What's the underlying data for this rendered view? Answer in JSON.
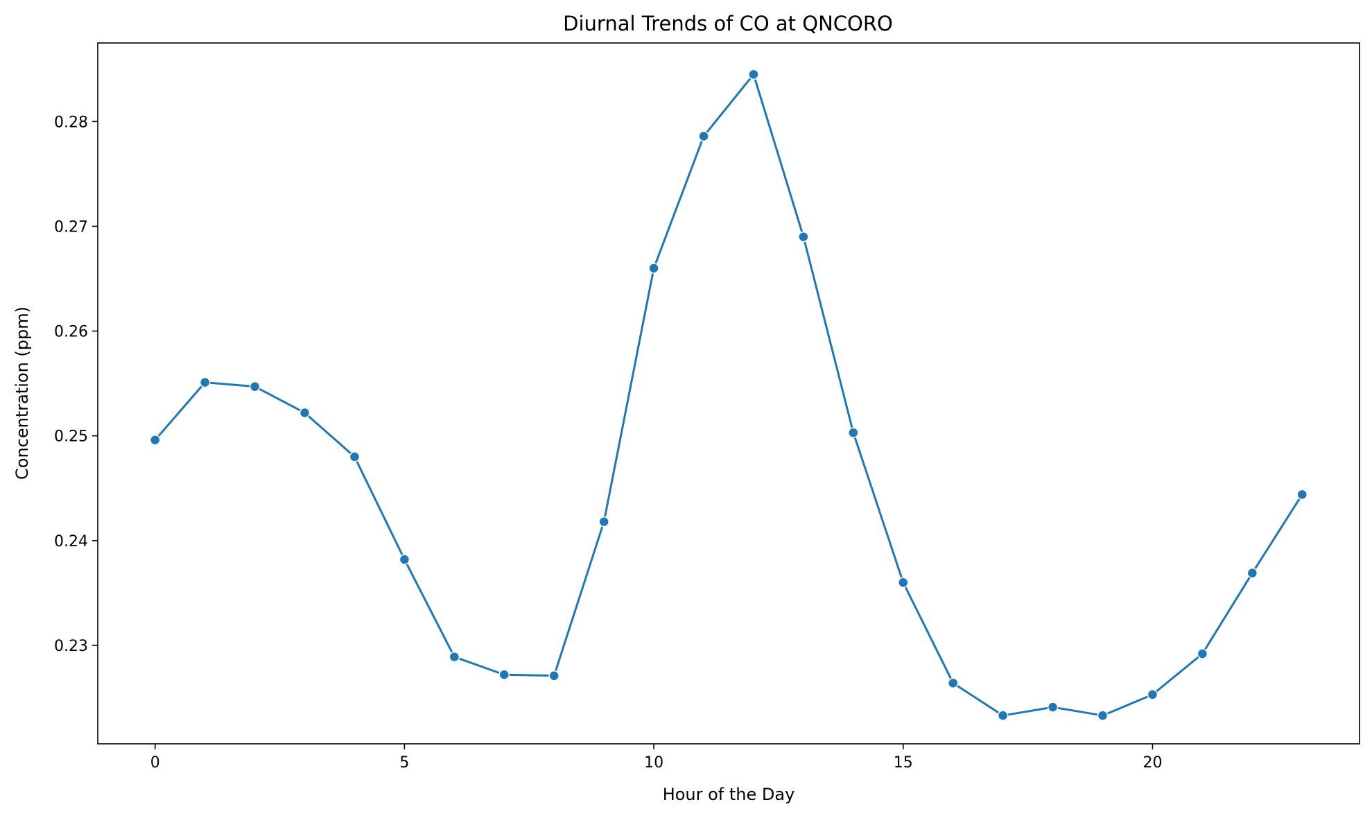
{
  "chart_data": {
    "type": "line",
    "title": "Diurnal Trends of CO at QNCORO",
    "xlabel": "Hour of the Day",
    "ylabel": "Concentration (ppm)",
    "xlim": [
      -1.15,
      24.15
    ],
    "ylim": [
      0.2206,
      0.2875
    ],
    "x_ticks": [
      0,
      5,
      10,
      15,
      20
    ],
    "y_ticks": [
      0.23,
      0.24,
      0.25,
      0.26,
      0.27,
      0.28
    ],
    "y_tick_labels": [
      "0.23",
      "0.24",
      "0.25",
      "0.26",
      "0.27",
      "0.28"
    ],
    "grid": false,
    "legend": false,
    "marker": "circle",
    "series": [
      {
        "color": "#1f77b4",
        "x": [
          0,
          1,
          2,
          3,
          4,
          5,
          6,
          7,
          8,
          9,
          10,
          11,
          12,
          13,
          14,
          15,
          16,
          17,
          18,
          19,
          20,
          21,
          22,
          23
        ],
        "values": [
          0.2496,
          0.2551,
          0.2547,
          0.2522,
          0.248,
          0.2382,
          0.2289,
          0.2272,
          0.2271,
          0.2418,
          0.266,
          0.2786,
          0.2845,
          0.269,
          0.2503,
          0.236,
          0.2264,
          0.2233,
          0.2241,
          0.2233,
          0.2253,
          0.2292,
          0.2369,
          0.2444
        ]
      }
    ]
  }
}
